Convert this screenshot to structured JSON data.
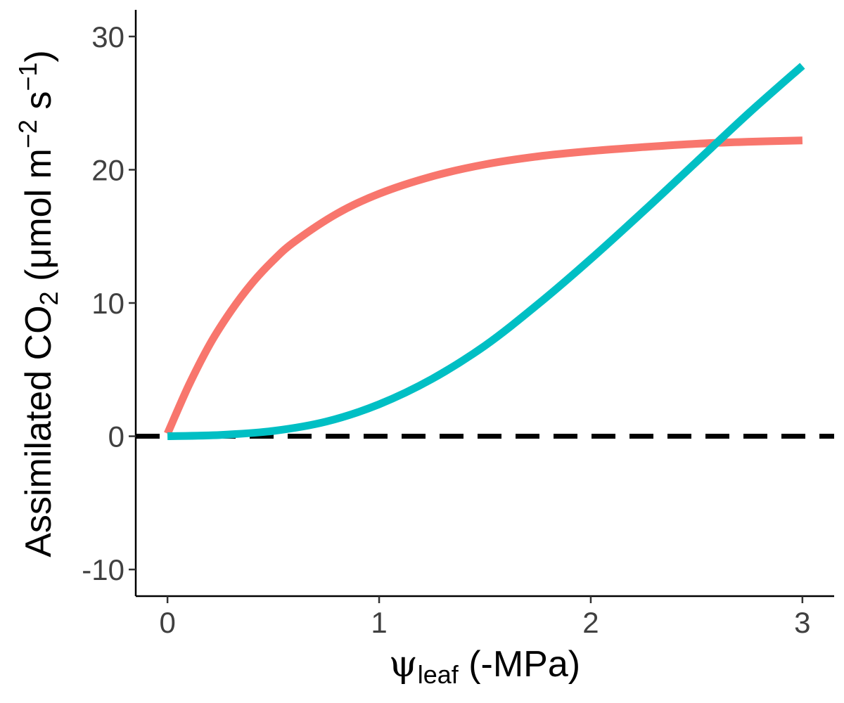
{
  "chart_data": {
    "type": "line",
    "xlabel": {
      "symbol": "ψ",
      "subscript": "leaf",
      "suffix": " (-MPa)"
    },
    "ylabel": {
      "prefix": "Assimilated CO",
      "sub1": "2",
      "mid": " (μmol m",
      "sup1": "−2",
      "mid2": " s",
      "sup2": "−1",
      "suffix": ")"
    },
    "xlim": [
      -0.15,
      3.15
    ],
    "ylim": [
      -12,
      32
    ],
    "x_ticks": [
      0,
      1,
      2,
      3
    ],
    "x_tick_labels": [
      "0",
      "1",
      "2",
      "3"
    ],
    "y_ticks": [
      -10,
      0,
      10,
      20,
      30
    ],
    "y_tick_labels": [
      "-10",
      "0",
      "10",
      "20",
      "30"
    ],
    "grid": false,
    "reference_line": {
      "y": 0,
      "style": "dashed",
      "color": "#000000"
    },
    "series": [
      {
        "color": "#F8766D",
        "x": [
          0,
          0.1,
          0.2,
          0.3,
          0.4,
          0.5,
          0.6,
          0.8,
          1.0,
          1.25,
          1.5,
          1.75,
          2.0,
          2.25,
          2.5,
          2.75,
          3.0
        ],
        "y": [
          0.2,
          3.8,
          6.9,
          9.4,
          11.5,
          13.2,
          14.6,
          16.7,
          18.2,
          19.5,
          20.4,
          21.0,
          21.4,
          21.7,
          21.95,
          22.1,
          22.2
        ]
      },
      {
        "color": "#00BFC4",
        "x": [
          0,
          0.25,
          0.5,
          0.75,
          1.0,
          1.25,
          1.5,
          1.75,
          2.0,
          2.25,
          2.5,
          2.75,
          3.0
        ],
        "y": [
          0,
          0.1,
          0.4,
          1.1,
          2.4,
          4.3,
          6.8,
          9.9,
          13.3,
          16.9,
          20.6,
          24.3,
          27.8
        ]
      }
    ]
  }
}
